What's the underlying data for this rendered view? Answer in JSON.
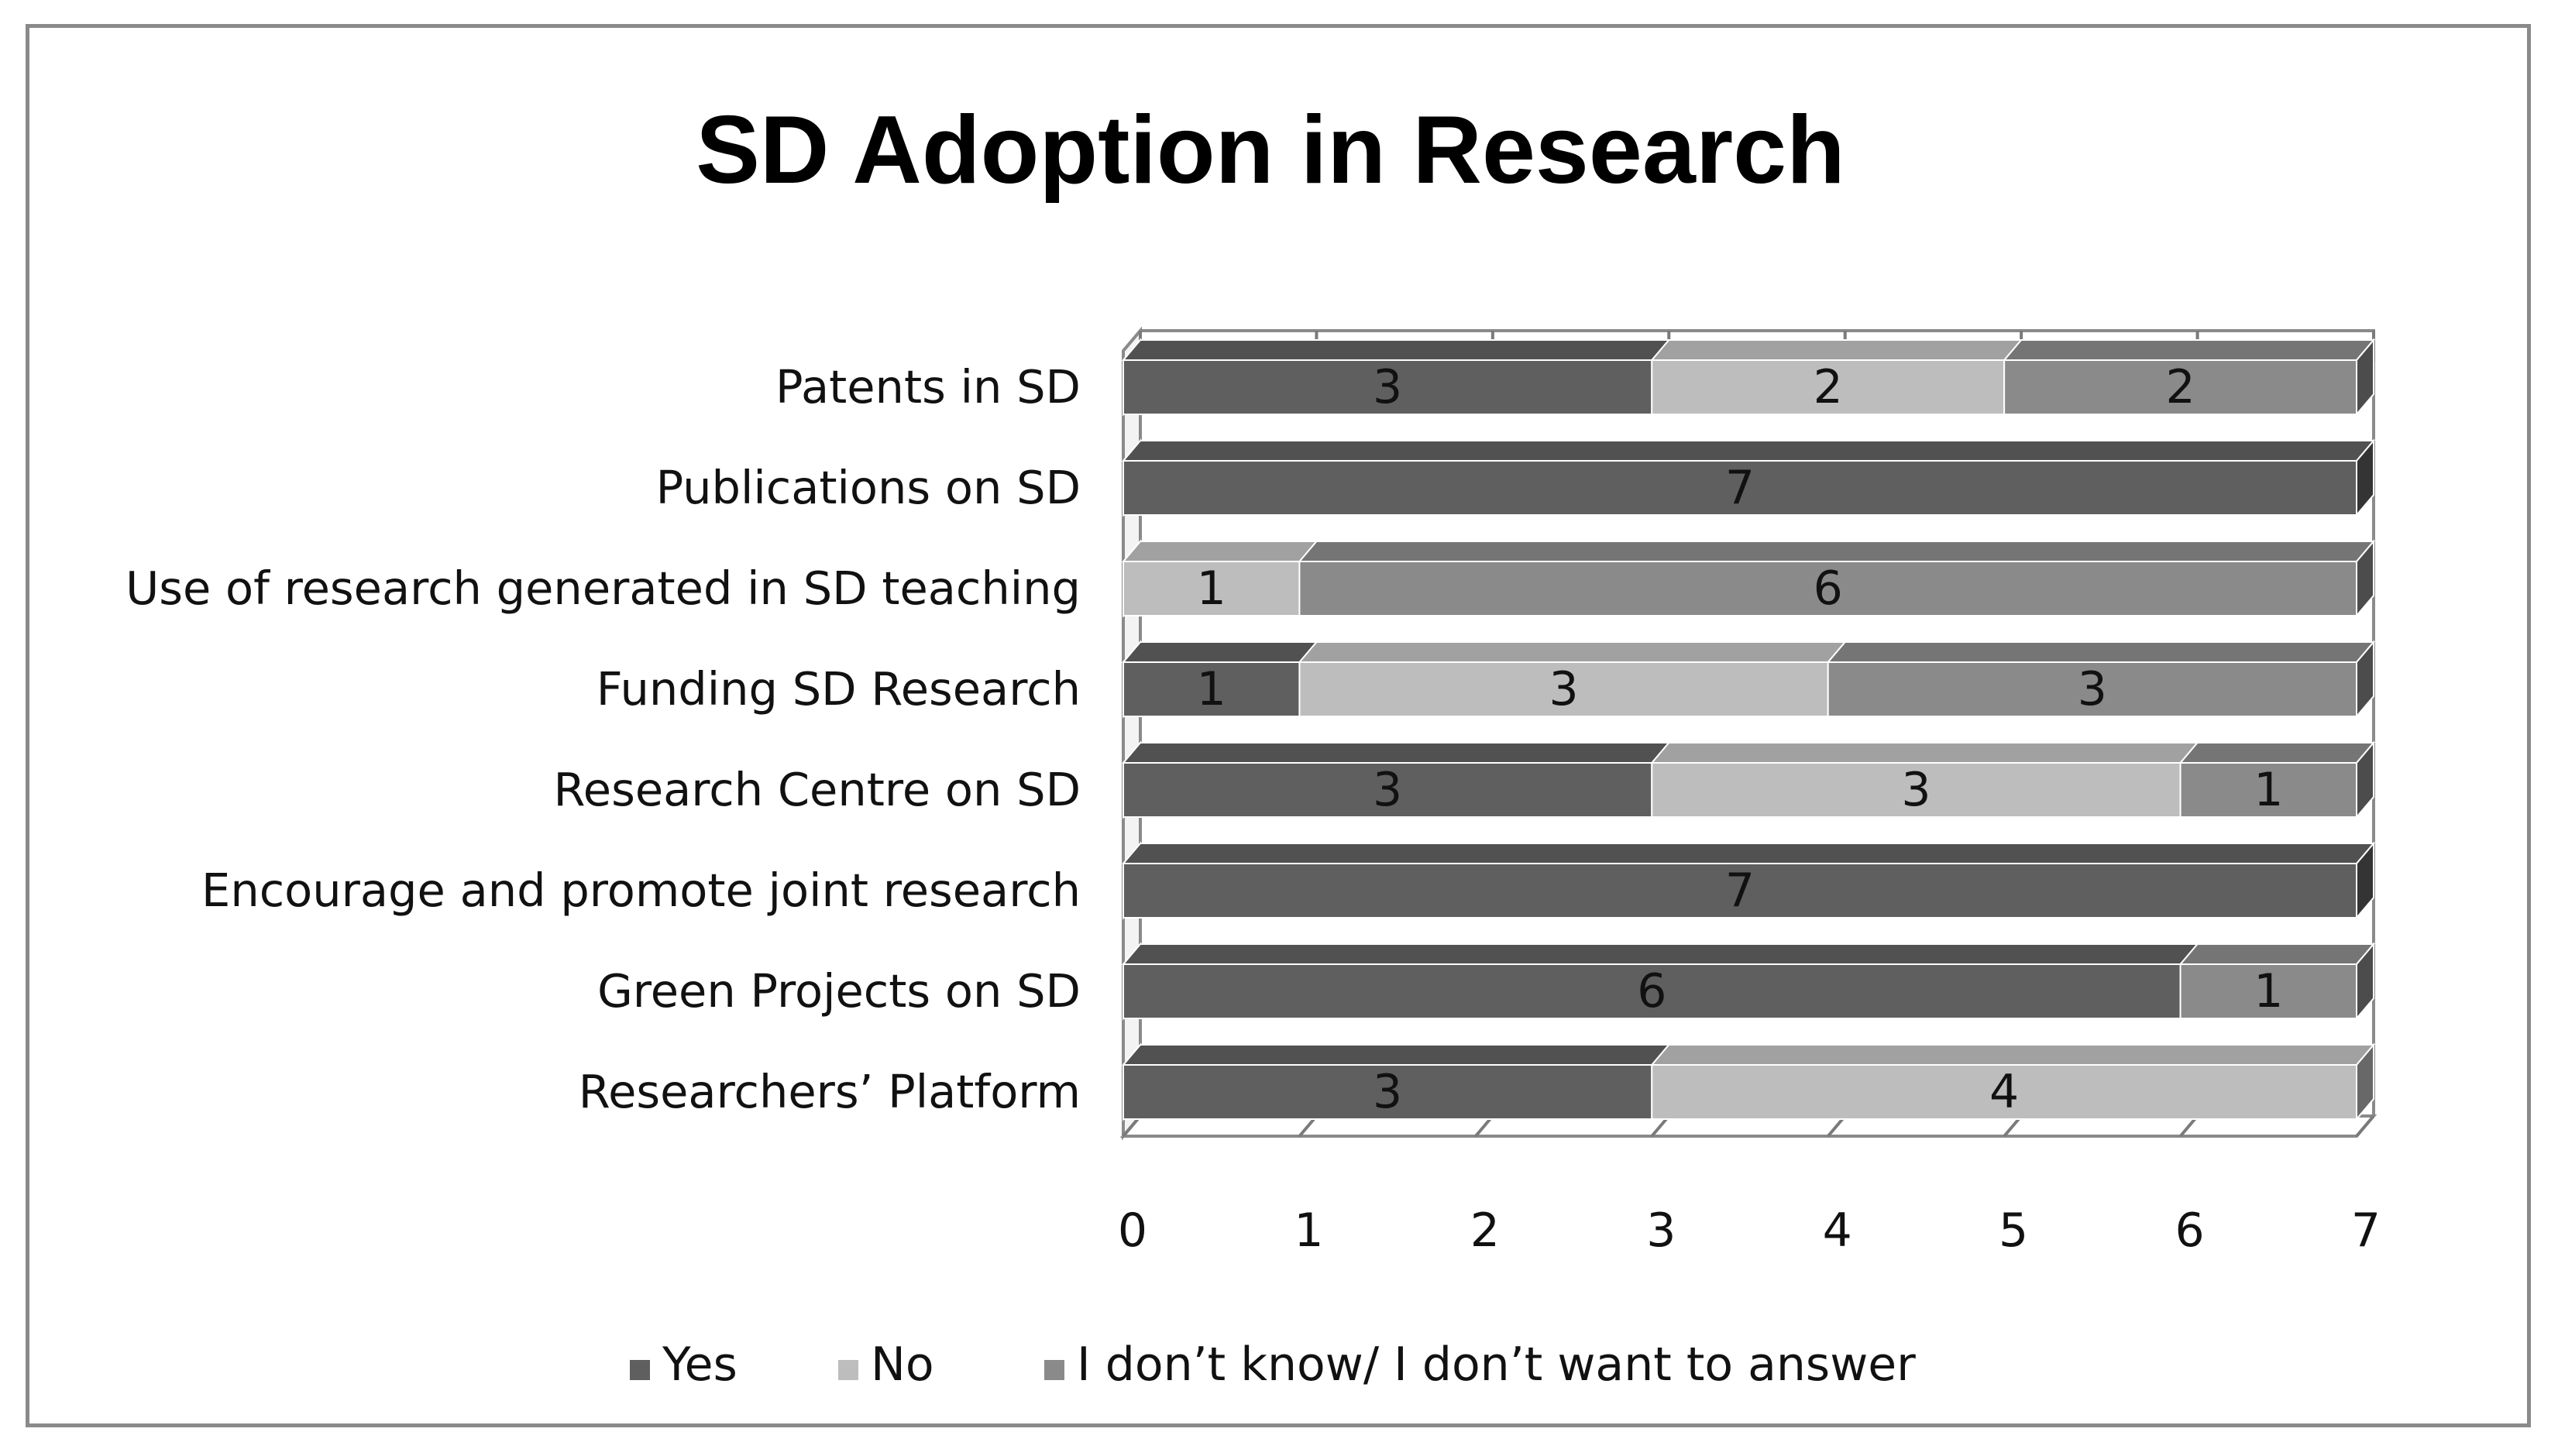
{
  "chart_data": {
    "type": "bar",
    "orientation": "horizontal",
    "stacked": true,
    "three_d": true,
    "title": "SD Adoption in Research",
    "xlabel": "",
    "ylabel": "",
    "xlim": [
      0,
      7
    ],
    "xticks": [
      "0",
      "1",
      "2",
      "3",
      "4",
      "5",
      "6",
      "7"
    ],
    "legend_position": "bottom",
    "categories": [
      "Patents in SD",
      "Publications on SD",
      "Use of research generated in SD teaching",
      "Funding SD Research",
      "Research Centre on SD",
      "Encourage and promote joint research",
      "Green Projects on SD",
      "Researchers’ Platform"
    ],
    "series": [
      {
        "name": "Yes",
        "color": "#5f5f5f",
        "values": [
          3,
          7,
          0,
          1,
          3,
          7,
          6,
          3
        ]
      },
      {
        "name": "No",
        "color": "#bdbdbd",
        "values": [
          2,
          0,
          1,
          3,
          3,
          0,
          0,
          4
        ]
      },
      {
        "name": "I don’t know/ I don’t want to answer",
        "color": "#8a8a8a",
        "values": [
          2,
          0,
          6,
          3,
          1,
          0,
          1,
          0
        ]
      }
    ]
  }
}
